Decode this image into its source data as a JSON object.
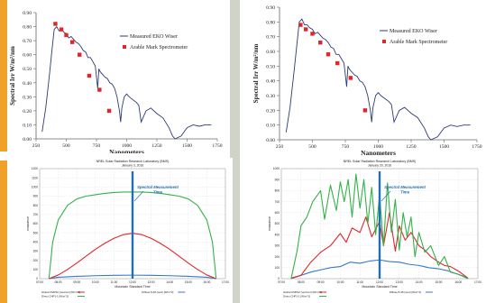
{
  "theme": {
    "background": "#ffffff",
    "accent": "#f0a12a",
    "gap_color": "#cfd3c8"
  },
  "chart_data": [
    {
      "type": "line",
      "panel": "top-left",
      "title": "",
      "xlabel": "Nanometers",
      "ylabel": "Spectral Irr W/m²/nm",
      "xticks": [
        "250",
        "500",
        "750",
        "1000",
        "1250",
        "1500",
        "1750"
      ],
      "yticks": [
        "0.00",
        "0.10",
        "0.20",
        "0.30",
        "0.40",
        "0.50",
        "0.60",
        "0.70",
        "0.80",
        "0.90"
      ],
      "xlim": [
        250,
        1750
      ],
      "ylim": [
        0,
        0.9
      ],
      "legend_position": "top-right",
      "series": [
        {
          "name": "Measured EKO Wiser",
          "color": "#2b3b74",
          "style": "line",
          "x": [
            300,
            330,
            360,
            380,
            400,
            420,
            440,
            460,
            480,
            500,
            520,
            540,
            560,
            580,
            600,
            620,
            640,
            660,
            680,
            700,
            720,
            740,
            760,
            770,
            780,
            800,
            820,
            840,
            860,
            880,
            900,
            920,
            940,
            950,
            960,
            980,
            1000,
            1020,
            1050,
            1080,
            1100,
            1120,
            1140,
            1160,
            1200,
            1250,
            1300,
            1350,
            1380,
            1400,
            1450,
            1500,
            1550,
            1600,
            1650,
            1700
          ],
          "y": [
            0.05,
            0.22,
            0.45,
            0.62,
            0.78,
            0.8,
            0.77,
            0.78,
            0.76,
            0.75,
            0.72,
            0.73,
            0.71,
            0.69,
            0.68,
            0.66,
            0.63,
            0.62,
            0.58,
            0.58,
            0.55,
            0.52,
            0.36,
            0.5,
            0.48,
            0.46,
            0.44,
            0.43,
            0.4,
            0.39,
            0.36,
            0.3,
            0.2,
            0.12,
            0.22,
            0.3,
            0.32,
            0.3,
            0.28,
            0.26,
            0.24,
            0.12,
            0.16,
            0.2,
            0.22,
            0.18,
            0.15,
            0.08,
            0.02,
            0.0,
            0.02,
            0.08,
            0.1,
            0.09,
            0.1,
            0.1
          ]
        },
        {
          "name": "Arable Mark Spectrometer",
          "color": "#e0262b",
          "style": "square",
          "x": [
            410,
            460,
            500,
            550,
            610,
            690,
            775,
            855
          ],
          "y": [
            0.82,
            0.78,
            0.74,
            0.69,
            0.6,
            0.45,
            0.35,
            0.2
          ]
        }
      ]
    },
    {
      "type": "line",
      "panel": "top-right",
      "title": "",
      "xlabel": "Nanometers",
      "ylabel": "Spectral Irr W/m²/nm",
      "xticks": [
        "250",
        "500",
        "750",
        "1000",
        "1250",
        "1500",
        "1750"
      ],
      "yticks": [
        "0.00",
        "0.10",
        "0.20",
        "0.30",
        "0.40",
        "0.50",
        "0.60",
        "0.70",
        "0.80",
        "0.90"
      ],
      "xlim": [
        250,
        1750
      ],
      "ylim": [
        0,
        0.9
      ],
      "legend_position": "top-right",
      "series": [
        {
          "name": "Measured EKO Wiser",
          "color": "#2b3b74",
          "style": "line",
          "x": [
            300,
            330,
            360,
            380,
            400,
            420,
            440,
            460,
            480,
            500,
            520,
            540,
            560,
            580,
            600,
            620,
            640,
            660,
            680,
            700,
            720,
            740,
            760,
            770,
            780,
            800,
            820,
            840,
            860,
            880,
            900,
            920,
            940,
            950,
            960,
            980,
            1000,
            1020,
            1050,
            1080,
            1100,
            1120,
            1140,
            1160,
            1200,
            1250,
            1300,
            1350,
            1380,
            1400,
            1450,
            1500,
            1550,
            1600,
            1650,
            1700
          ],
          "y": [
            0.05,
            0.22,
            0.46,
            0.63,
            0.8,
            0.82,
            0.78,
            0.78,
            0.76,
            0.75,
            0.72,
            0.73,
            0.71,
            0.69,
            0.68,
            0.66,
            0.63,
            0.62,
            0.58,
            0.58,
            0.55,
            0.52,
            0.36,
            0.5,
            0.48,
            0.46,
            0.44,
            0.43,
            0.4,
            0.39,
            0.36,
            0.3,
            0.2,
            0.12,
            0.22,
            0.3,
            0.32,
            0.3,
            0.28,
            0.26,
            0.24,
            0.12,
            0.16,
            0.2,
            0.22,
            0.18,
            0.15,
            0.08,
            0.02,
            0.0,
            0.02,
            0.08,
            0.1,
            0.09,
            0.1,
            0.1
          ]
        },
        {
          "name": "Arable Mark Spectrometer",
          "color": "#e0262b",
          "style": "square",
          "x": [
            410,
            450,
            500,
            560,
            620,
            690,
            790,
            900
          ],
          "y": [
            0.78,
            0.75,
            0.72,
            0.66,
            0.58,
            0.52,
            0.42,
            0.2
          ]
        }
      ]
    },
    {
      "type": "line",
      "panel": "bottom-left",
      "title": "NREL Solar Radiation Research Laboratory (BMS)",
      "subtitle": "January 3, 2016",
      "xlabel": "Mountain Standard Time",
      "ylabel": "Irradiance",
      "annotation": "Spectral Measurement Time",
      "marker_x": 12,
      "xlim": [
        7,
        17
      ],
      "ylim": [
        0,
        1200
      ],
      "yticks": [
        "0",
        "100",
        "200",
        "300",
        "400",
        "500",
        "600",
        "700",
        "800",
        "900",
        "1000",
        "1100",
        "1200"
      ],
      "xticks": [
        "07:00",
        "08:00",
        "09:00",
        "10:00",
        "11:00",
        "12:00",
        "13:00",
        "14:00",
        "15:00",
        "16:00",
        "17:00"
      ],
      "legend_position": "bottom",
      "series": [
        {
          "name": "Global CMP22 (vent/cor) [W/m^2]",
          "color": "#e0262b",
          "x": [
            7.5,
            8,
            8.5,
            9,
            9.5,
            10,
            10.5,
            11,
            11.5,
            12,
            12.5,
            13,
            13.5,
            14,
            14.5,
            15,
            15.5,
            16,
            16.5
          ],
          "y": [
            0,
            40,
            100,
            170,
            245,
            320,
            385,
            440,
            480,
            495,
            480,
            440,
            385,
            320,
            245,
            170,
            100,
            40,
            0
          ]
        },
        {
          "name": "Direct CHP1-1 [W/m^2]",
          "color": "#33b24a",
          "x": [
            7.5,
            7.7,
            8,
            8.5,
            9,
            9.5,
            10,
            10.5,
            11,
            11.5,
            12,
            12.5,
            13,
            13.5,
            14,
            14.5,
            15,
            15.5,
            16,
            16.3,
            16.5
          ],
          "y": [
            0,
            400,
            640,
            800,
            870,
            900,
            915,
            930,
            940,
            945,
            945,
            945,
            940,
            930,
            915,
            900,
            870,
            800,
            640,
            400,
            0
          ]
        },
        {
          "name": "Diffuse 8-48 (vent) [W/m^2]",
          "color": "#3579c9",
          "x": [
            7.5,
            8,
            9,
            10,
            11,
            12,
            13,
            14,
            15,
            16,
            16.5
          ],
          "y": [
            0,
            15,
            25,
            32,
            36,
            38,
            36,
            32,
            25,
            15,
            0
          ]
        }
      ]
    },
    {
      "type": "line",
      "panel": "bottom-right",
      "title": "NREL Solar Radiation Research Laboratory (BMS)",
      "subtitle": "January 20, 2016",
      "xlabel": "Mountain Standard Time",
      "ylabel": "Irradiance",
      "annotation": "Spectral Measurement Time",
      "marker_x": 12,
      "xlim": [
        7,
        17
      ],
      "ylim": [
        0,
        1000
      ],
      "yticks": [
        "0",
        "100",
        "200",
        "300",
        "400",
        "500",
        "600",
        "700",
        "800",
        "900",
        "1000"
      ],
      "xticks": [
        "07:00",
        "08:00",
        "09:00",
        "10:00",
        "11:00",
        "12:00",
        "13:00",
        "14:00",
        "15:00",
        "16:00",
        "17:00"
      ],
      "legend_position": "bottom",
      "series": [
        {
          "name": "Global CMP22 (vent/cor) [W/m^2]",
          "color": "#e0262b",
          "x": [
            7.5,
            8,
            8.5,
            9,
            9.5,
            10,
            10.3,
            10.6,
            11,
            11.3,
            11.6,
            12,
            12.2,
            12.5,
            12.8,
            13,
            13.3,
            13.6,
            14,
            14.3,
            14.6,
            15,
            15.3,
            15.6,
            16,
            16.5
          ],
          "y": [
            5,
            30,
            150,
            240,
            300,
            410,
            330,
            460,
            420,
            560,
            380,
            520,
            300,
            600,
            250,
            480,
            350,
            420,
            300,
            260,
            200,
            150,
            120,
            110,
            70,
            5
          ]
        },
        {
          "name": "Direct CHP1-1 [W/m^2]",
          "color": "#33b24a",
          "x": [
            7.5,
            7.8,
            8,
            8.3,
            8.6,
            9,
            9.2,
            9.5,
            9.8,
            10,
            10.2,
            10.4,
            10.6,
            10.8,
            11,
            11.2,
            11.4,
            11.6,
            11.8,
            12,
            12.2,
            12.4,
            12.6,
            12.8,
            13,
            13.2,
            13.4,
            13.6,
            13.8,
            14,
            14.3,
            14.6,
            15,
            15.3,
            15.6,
            16,
            16.3,
            16.5
          ],
          "y": [
            0,
            250,
            480,
            560,
            700,
            800,
            540,
            850,
            620,
            880,
            700,
            900,
            560,
            950,
            640,
            900,
            500,
            830,
            400,
            760,
            300,
            870,
            420,
            720,
            260,
            600,
            380,
            560,
            200,
            420,
            240,
            300,
            120,
            200,
            60,
            40,
            20,
            0
          ]
        },
        {
          "name": "Diffuse 8-48 (vent) [W/m^2]",
          "color": "#3579c9",
          "x": [
            7.5,
            8,
            8.5,
            9,
            9.5,
            10,
            10.5,
            11,
            11.5,
            12,
            12.5,
            13,
            13.5,
            14,
            14.5,
            15,
            15.5,
            16,
            16.5
          ],
          "y": [
            0,
            30,
            60,
            80,
            100,
            110,
            150,
            140,
            160,
            170,
            155,
            150,
            130,
            120,
            100,
            90,
            70,
            40,
            0
          ]
        }
      ]
    }
  ]
}
